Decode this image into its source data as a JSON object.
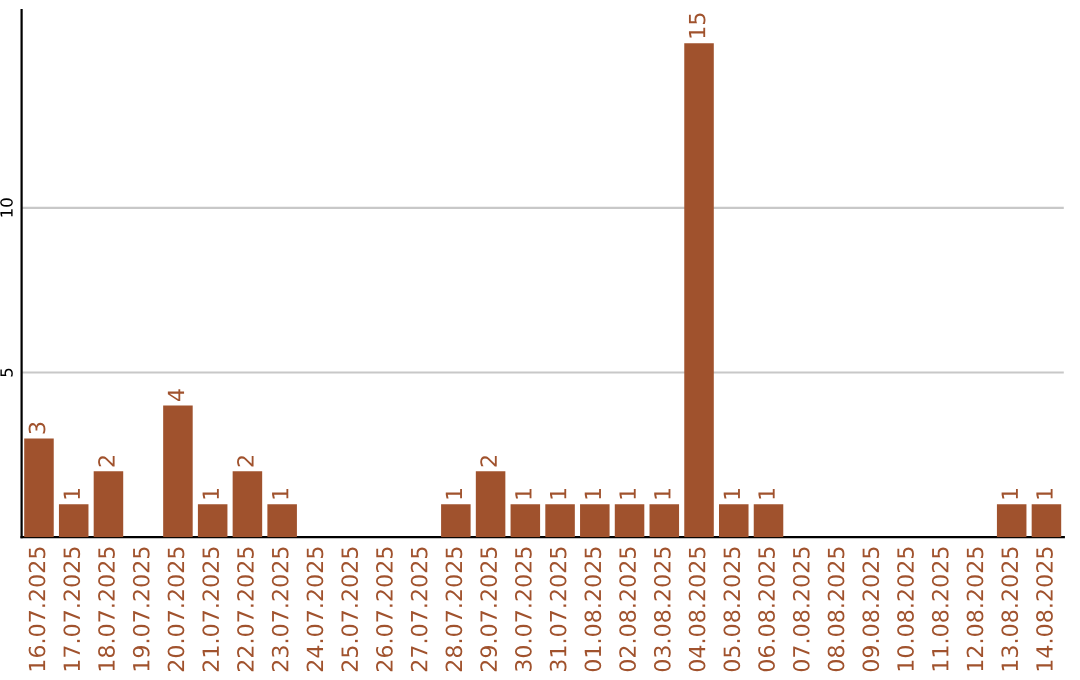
{
  "chart_data": {
    "type": "bar",
    "categories": [
      "16.07.2025",
      "17.07.2025",
      "18.07.2025",
      "19.07.2025",
      "20.07.2025",
      "21.07.2025",
      "22.07.2025",
      "23.07.2025",
      "24.07.2025",
      "25.07.2025",
      "26.07.2025",
      "27.07.2025",
      "28.07.2025",
      "29.07.2025",
      "30.07.2025",
      "31.07.2025",
      "01.08.2025",
      "02.08.2025",
      "03.08.2025",
      "04.08.2025",
      "05.08.2025",
      "06.08.2025",
      "07.08.2025",
      "08.08.2025",
      "09.08.2025",
      "10.08.2025",
      "11.08.2025",
      "12.08.2025",
      "13.08.2025",
      "14.08.2025"
    ],
    "values": [
      3,
      1,
      2,
      0,
      4,
      1,
      2,
      1,
      0,
      0,
      0,
      0,
      1,
      2,
      1,
      1,
      1,
      1,
      1,
      15,
      1,
      1,
      0,
      0,
      0,
      0,
      0,
      0,
      1,
      1
    ],
    "value_labels": [
      "3",
      "1",
      "2",
      null,
      "4",
      "1",
      "2",
      "1",
      null,
      null,
      null,
      null,
      "1",
      "2",
      "1",
      "1",
      "1",
      "1",
      "1",
      "15",
      "1",
      "1",
      null,
      null,
      null,
      null,
      null,
      null,
      "1",
      "1"
    ],
    "color": "#a0522d",
    "ylim": [
      0,
      16
    ],
    "yticks": [
      5,
      10
    ],
    "grid": "y"
  }
}
